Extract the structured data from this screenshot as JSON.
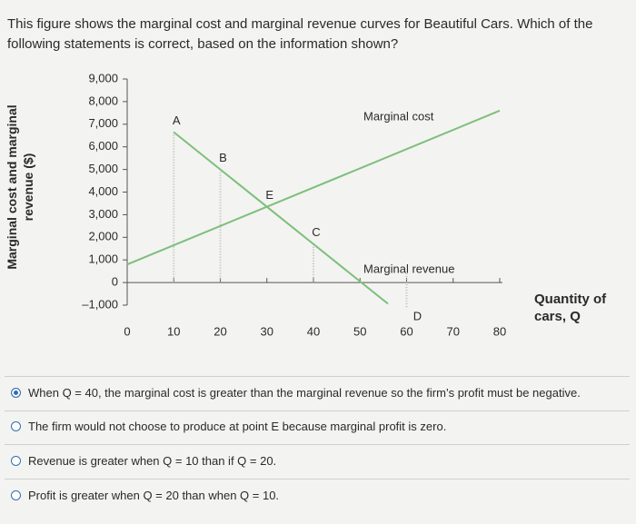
{
  "question": "This figure shows the marginal cost and marginal revenue curves for Beautiful Cars. Which of the following statements is correct, based on the information shown?",
  "chart_data": {
    "type": "line",
    "x_label": "Quantity of cars, Q",
    "y_label": "Marginal cost and marginal revenue ($)",
    "xlim": [
      0,
      80
    ],
    "xticks": [
      0,
      10,
      20,
      30,
      40,
      50,
      60,
      70,
      80
    ],
    "ylim": [
      -1000,
      9000
    ],
    "yticks": [
      {
        "value": -1000,
        "label": "–1,000"
      },
      0,
      {
        "value": 1000,
        "label": "1,000"
      },
      {
        "value": 2000,
        "label": "2,000"
      },
      {
        "value": 3000,
        "label": "3,000"
      },
      {
        "value": 4000,
        "label": "4,000"
      },
      {
        "value": 5000,
        "label": "5,000"
      },
      {
        "value": 6000,
        "label": "6,000"
      },
      {
        "value": 7000,
        "label": "7,000"
      },
      {
        "value": 8000,
        "label": "8,000"
      },
      {
        "value": 9000,
        "label": "9,000"
      }
    ],
    "series": [
      {
        "name": "Marginal cost",
        "color": "#7dbf7a",
        "x": [
          0,
          80
        ],
        "values": [
          800,
          7600
        ]
      },
      {
        "name": "Marginal revenue",
        "color": "#7dbf7a",
        "x": [
          10,
          20,
          30,
          40,
          50,
          56
        ],
        "values": [
          6650,
          5000,
          3350,
          1700,
          50,
          -940
        ]
      }
    ],
    "annotations": [
      {
        "text": "A",
        "x": 10,
        "drop_line": true
      },
      {
        "text": "B",
        "x": 20,
        "drop_line": true
      },
      {
        "text": "E",
        "x": 30,
        "drop_line": false
      },
      {
        "text": "C",
        "x": 40,
        "drop_line": true
      },
      {
        "text": "D",
        "x": 60,
        "drop_line": true
      }
    ]
  },
  "options": [
    "When Q = 40, the marginal cost is greater than the marginal revenue so the firm’s profit must be negative.",
    "The firm would not choose to produce at point E because marginal profit is zero.",
    "Revenue is greater when Q = 10 than if Q = 20.",
    "Profit is greater when Q = 20 than when Q = 10."
  ],
  "selected": 0
}
